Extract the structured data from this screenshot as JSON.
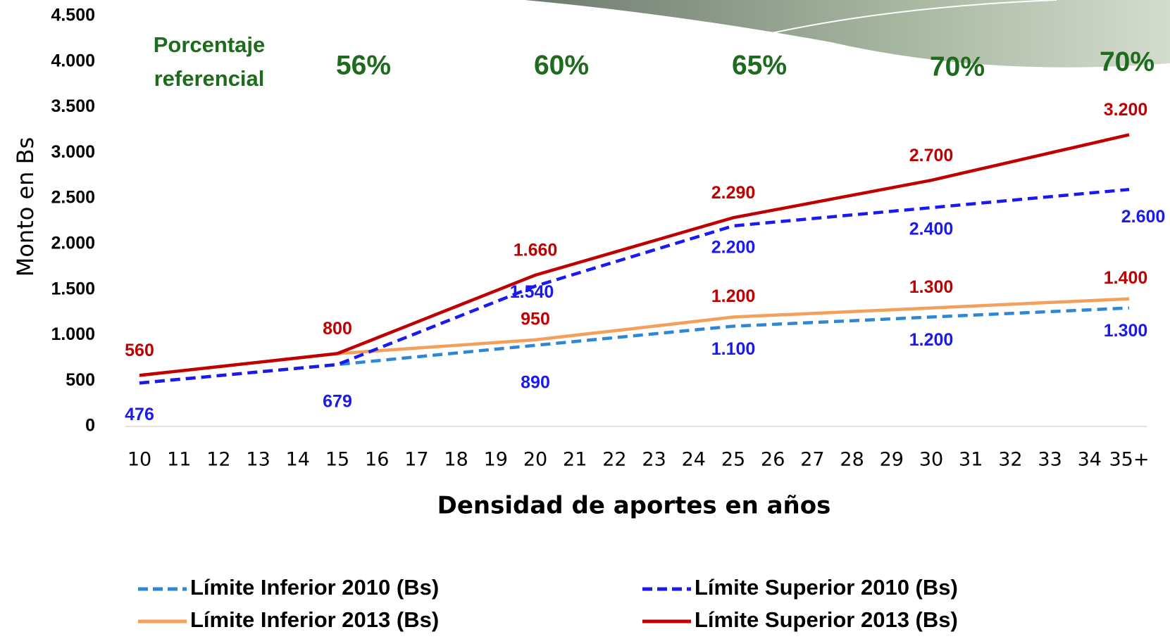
{
  "chart_data": {
    "type": "line",
    "x_label": "Densidad de aportes en años",
    "y_label": "Monto en Bs",
    "annotations": {
      "heading": [
        "Porcentaje",
        "referencial"
      ],
      "percentages": [
        "56%",
        "60%",
        "65%",
        "70%",
        "70%"
      ],
      "color": "#1e6b1e"
    },
    "categories": [
      "10",
      "11",
      "12",
      "13",
      "14",
      "15",
      "16",
      "17",
      "18",
      "19",
      "20",
      "21",
      "22",
      "23",
      "24",
      "25",
      "26",
      "27",
      "28",
      "29",
      "30",
      "31",
      "32",
      "33",
      "34",
      "35+"
    ],
    "ylim": [
      0,
      4500
    ],
    "yticks": [
      0,
      500,
      {
        "value": 1000,
        "label": "1.000"
      },
      {
        "value": 1500,
        "label": "1.500"
      },
      {
        "value": 2000,
        "label": "2.000"
      },
      {
        "value": 2500,
        "label": "2.500"
      },
      {
        "value": 3000,
        "label": "3.000"
      },
      {
        "value": 3500,
        "label": "3.500"
      },
      {
        "value": 4000,
        "label": "4.000"
      },
      {
        "value": 4500,
        "label": "4.500"
      }
    ],
    "series": [
      {
        "name": "Límite Inferior 2010 (Bs)",
        "color": "#2e86d4",
        "dash": true,
        "label_color": "#1a1aee",
        "values": [
          476,
          517,
          557,
          598,
          638,
          679,
          721,
          763,
          806,
          848,
          890,
          932,
          974,
          1016,
          1058,
          1100,
          1120,
          1140,
          1160,
          1180,
          1200,
          1220,
          1240,
          1260,
          1280,
          1300
        ],
        "value_labels": [
          null,
          null,
          null,
          null,
          null,
          null,
          null,
          null,
          null,
          null,
          null,
          null,
          null,
          null,
          null,
          "1.100",
          null,
          null,
          null,
          null,
          "1.200",
          null,
          null,
          null,
          null,
          "1.300"
        ]
      },
      {
        "name": "Límite Superior 2010 (Bs)",
        "color": "#1a1aee",
        "dash": true,
        "label_color": "#1a1aee",
        "values": [
          476,
          517,
          557,
          598,
          638,
          679,
          851,
          1023,
          1196,
          1368,
          1540,
          1672,
          1804,
          1936,
          2068,
          2200,
          2240,
          2280,
          2320,
          2360,
          2400,
          2440,
          2480,
          2520,
          2560,
          2600
        ],
        "value_labels": [
          null,
          null,
          null,
          null,
          null,
          null,
          null,
          null,
          null,
          null,
          "1.540",
          null,
          null,
          null,
          null,
          "2.200",
          null,
          null,
          null,
          null,
          "2.400",
          null,
          null,
          null,
          null,
          "2.600"
        ]
      },
      {
        "name": "Límite Inferior 2013 (Bs)",
        "color": "#f5a05a",
        "dash": false,
        "label_color": "#c00000",
        "values": [
          560,
          608,
          656,
          704,
          752,
          800,
          830,
          860,
          890,
          920,
          950,
          1000,
          1050,
          1100,
          1150,
          1200,
          1220,
          1240,
          1260,
          1280,
          1300,
          1320,
          1340,
          1360,
          1380,
          1400
        ],
        "value_labels": [
          null,
          null,
          null,
          null,
          null,
          null,
          null,
          null,
          null,
          null,
          "950",
          null,
          null,
          null,
          null,
          "1.200",
          null,
          null,
          null,
          null,
          "1.300",
          null,
          null,
          null,
          null,
          "1.400"
        ]
      },
      {
        "name": "Límite Superior 2013 (Bs)",
        "color": "#c00000",
        "dash": false,
        "label_color": "#c00000",
        "values": [
          560,
          608,
          656,
          704,
          752,
          800,
          972,
          1144,
          1316,
          1488,
          1660,
          1786,
          1912,
          2038,
          2164,
          2290,
          2372,
          2454,
          2536,
          2618,
          2700,
          2800,
          2900,
          3000,
          3100,
          3200
        ],
        "value_labels": [
          "560",
          null,
          null,
          null,
          null,
          "800",
          null,
          null,
          null,
          null,
          "1.660",
          null,
          null,
          null,
          null,
          "2.290",
          null,
          null,
          null,
          null,
          "2.700",
          null,
          null,
          null,
          null,
          "3.200"
        ]
      }
    ],
    "low_labels": {
      "values": [
        476,
        679,
        890
      ],
      "value_labels": [
        "476",
        "679",
        "890"
      ],
      "categories_at": [
        0,
        5,
        10
      ]
    }
  }
}
